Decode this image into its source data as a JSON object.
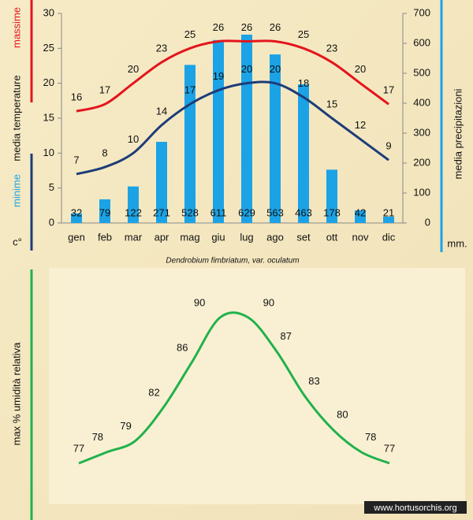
{
  "chart_data": [
    {
      "type": "bar",
      "categories": [
        "gen",
        "feb",
        "mar",
        "apr",
        "mag",
        "giu",
        "lug",
        "ago",
        "set",
        "ott",
        "nov",
        "dic"
      ],
      "y_label": "media  temperature",
      "y_unit": "c°",
      "y2_label": "media  precipitazioni",
      "y2_unit": "mm.",
      "caption": "Dendrobium fimbriatum, var. oculatum",
      "ylim": [
        0,
        30
      ],
      "yticks": [
        0,
        5,
        10,
        15,
        20,
        25,
        30
      ],
      "y2lim": [
        0,
        700
      ],
      "y2ticks": [
        0,
        100,
        200,
        300,
        400,
        500,
        600,
        700
      ],
      "series": [
        {
          "name": "massime",
          "type": "line",
          "color": "#e3161d",
          "values": [
            16,
            17,
            20,
            23,
            25,
            26,
            26,
            26,
            25,
            23,
            20,
            17
          ]
        },
        {
          "name": "minime",
          "type": "line",
          "color": "#1d3c78",
          "values": [
            7,
            8,
            10,
            14,
            17,
            19,
            20,
            20,
            18,
            15,
            12,
            9
          ]
        },
        {
          "type": "bar",
          "axis": "y2",
          "color": "#1ba3e6",
          "values": [
            32,
            79,
            122,
            271,
            528,
            611,
            629,
            563,
            463,
            178,
            42,
            21
          ]
        }
      ]
    },
    {
      "type": "line",
      "y_label": "max % umidità relativa",
      "series": [
        {
          "color": "#22b14c",
          "values": [
            77,
            78,
            79,
            82,
            86,
            90,
            90,
            87,
            83,
            80,
            78,
            77
          ]
        }
      ],
      "watermark": "www.hortusorchis.org"
    }
  ]
}
